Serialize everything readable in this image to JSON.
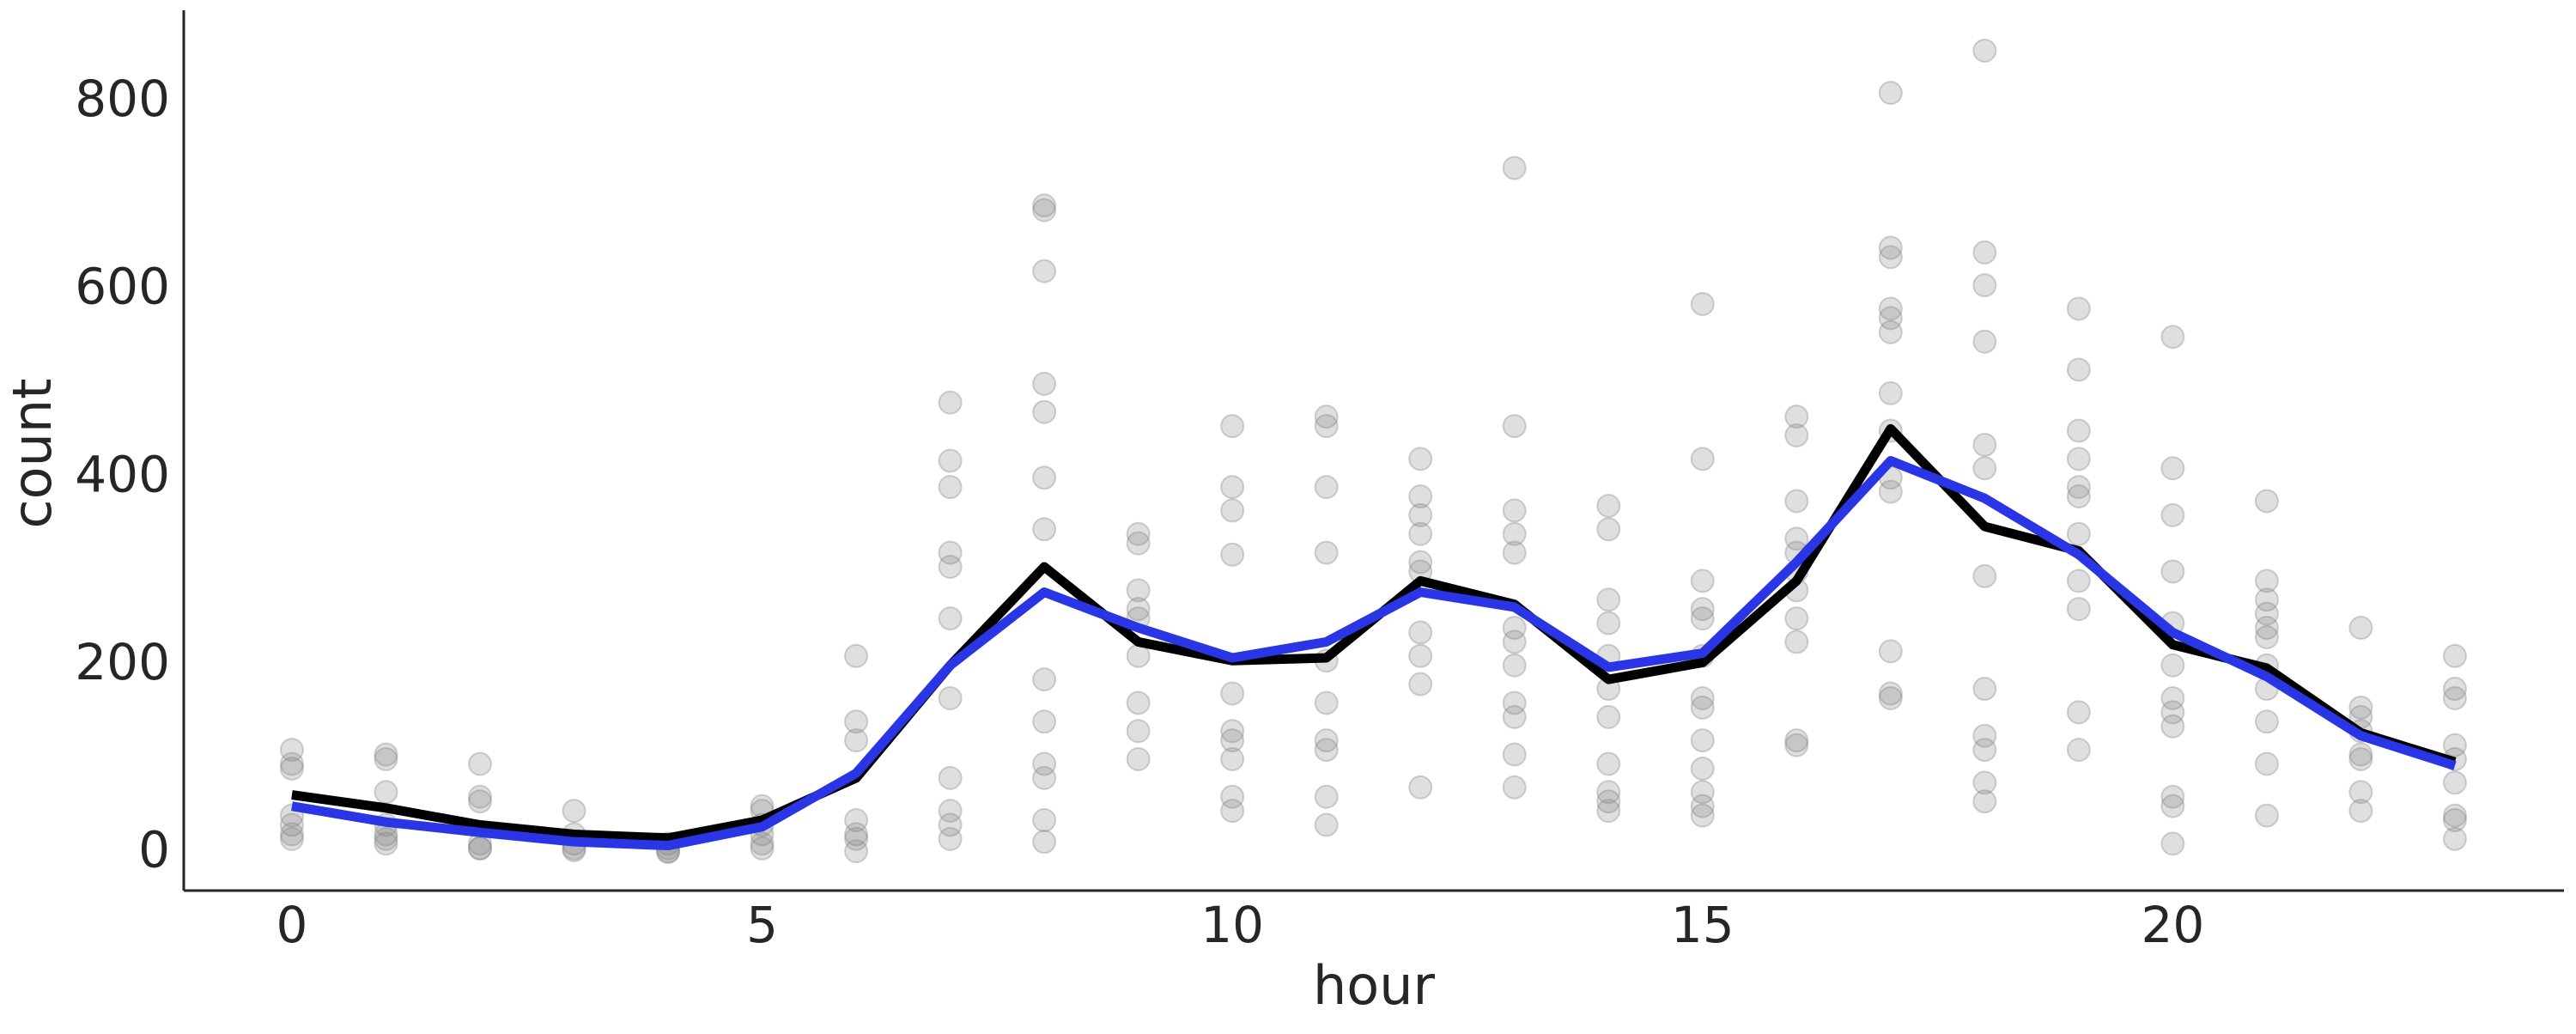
{
  "chart_data": {
    "type": "scatter",
    "xlabel": "hour",
    "ylabel": "count",
    "xlim": [
      -1.15,
      24.16
    ],
    "ylim": [
      -40,
      898
    ],
    "xticks": [
      0,
      5,
      10,
      15,
      20
    ],
    "yticks": [
      0,
      200,
      400,
      600,
      800
    ],
    "grid": false,
    "point_color": "#808080",
    "scatter": [
      {
        "x": 0,
        "values": [
          110,
          95,
          90,
          40,
          30,
          20,
          15
        ]
      },
      {
        "x": 1,
        "values": [
          105,
          100,
          65,
          30,
          20,
          15,
          10
        ]
      },
      {
        "x": 2,
        "values": [
          95,
          60,
          55,
          10,
          5,
          5
        ]
      },
      {
        "x": 3,
        "values": [
          45,
          20,
          10,
          5,
          3
        ]
      },
      {
        "x": 4,
        "values": [
          10,
          5,
          2,
          1
        ]
      },
      {
        "x": 5,
        "values": [
          50,
          45,
          30,
          20,
          10,
          5
        ]
      },
      {
        "x": 6,
        "values": [
          210,
          140,
          120,
          35,
          20,
          15,
          2
        ]
      },
      {
        "x": 7,
        "values": [
          480,
          418,
          390,
          320,
          305,
          250,
          165,
          80,
          45,
          30,
          15
        ]
      },
      {
        "x": 8,
        "values": [
          690,
          685,
          620,
          500,
          470,
          400,
          345,
          185,
          140,
          95,
          80,
          35,
          12
        ]
      },
      {
        "x": 9,
        "values": [
          340,
          330,
          280,
          260,
          250,
          210,
          160,
          130,
          100
        ]
      },
      {
        "x": 10,
        "values": [
          455,
          390,
          365,
          318,
          170,
          130,
          120,
          100,
          60,
          45
        ]
      },
      {
        "x": 11,
        "values": [
          465,
          455,
          390,
          320,
          205,
          160,
          120,
          110,
          60,
          30
        ]
      },
      {
        "x": 12,
        "values": [
          420,
          380,
          360,
          340,
          310,
          300,
          235,
          210,
          180,
          70
        ]
      },
      {
        "x": 13,
        "values": [
          730,
          455,
          365,
          340,
          320,
          240,
          225,
          200,
          160,
          145,
          105,
          70
        ]
      },
      {
        "x": 14,
        "values": [
          370,
          345,
          270,
          245,
          210,
          175,
          145,
          95,
          65,
          55,
          45
        ]
      },
      {
        "x": 15,
        "values": [
          585,
          420,
          290,
          260,
          250,
          210,
          165,
          155,
          120,
          90,
          65,
          50,
          40
        ]
      },
      {
        "x": 16,
        "values": [
          465,
          445,
          375,
          335,
          320,
          300,
          280,
          250,
          225,
          120,
          115
        ]
      },
      {
        "x": 17,
        "values": [
          810,
          645,
          635,
          580,
          570,
          555,
          490,
          450,
          400,
          385,
          215,
          170,
          165
        ]
      },
      {
        "x": 18,
        "values": [
          855,
          640,
          605,
          545,
          435,
          410,
          295,
          175,
          125,
          110,
          75,
          55
        ]
      },
      {
        "x": 19,
        "values": [
          580,
          515,
          450,
          420,
          390,
          380,
          340,
          290,
          260,
          150,
          110
        ]
      },
      {
        "x": 20,
        "values": [
          550,
          410,
          360,
          300,
          245,
          200,
          165,
          150,
          135,
          60,
          50,
          10
        ]
      },
      {
        "x": 21,
        "values": [
          375,
          290,
          270,
          255,
          240,
          230,
          200,
          175,
          140,
          95,
          40
        ]
      },
      {
        "x": 22,
        "values": [
          240,
          155,
          145,
          130,
          105,
          100,
          65,
          45
        ]
      },
      {
        "x": 23,
        "values": [
          210,
          175,
          165,
          115,
          100,
          75,
          40,
          35,
          15
        ]
      }
    ],
    "line_x": [
      0,
      1,
      2,
      3,
      4,
      5,
      6,
      7,
      8,
      9,
      10,
      11,
      12,
      13,
      14,
      15,
      16,
      17,
      18,
      19,
      20,
      21,
      22,
      23
    ],
    "series": [
      {
        "type": "line",
        "color": "#000000",
        "values": [
          62,
          48,
          30,
          20,
          16,
          35,
          80,
          200,
          305,
          225,
          205,
          208,
          290,
          265,
          185,
          203,
          290,
          452,
          348,
          322,
          222,
          197,
          128,
          97
        ]
      },
      {
        "type": "line",
        "color": "#2a35e6",
        "values": [
          50,
          33,
          22,
          12,
          8,
          28,
          85,
          200,
          278,
          240,
          208,
          225,
          278,
          262,
          198,
          213,
          310,
          418,
          378,
          318,
          235,
          188,
          125,
          93
        ]
      }
    ]
  }
}
